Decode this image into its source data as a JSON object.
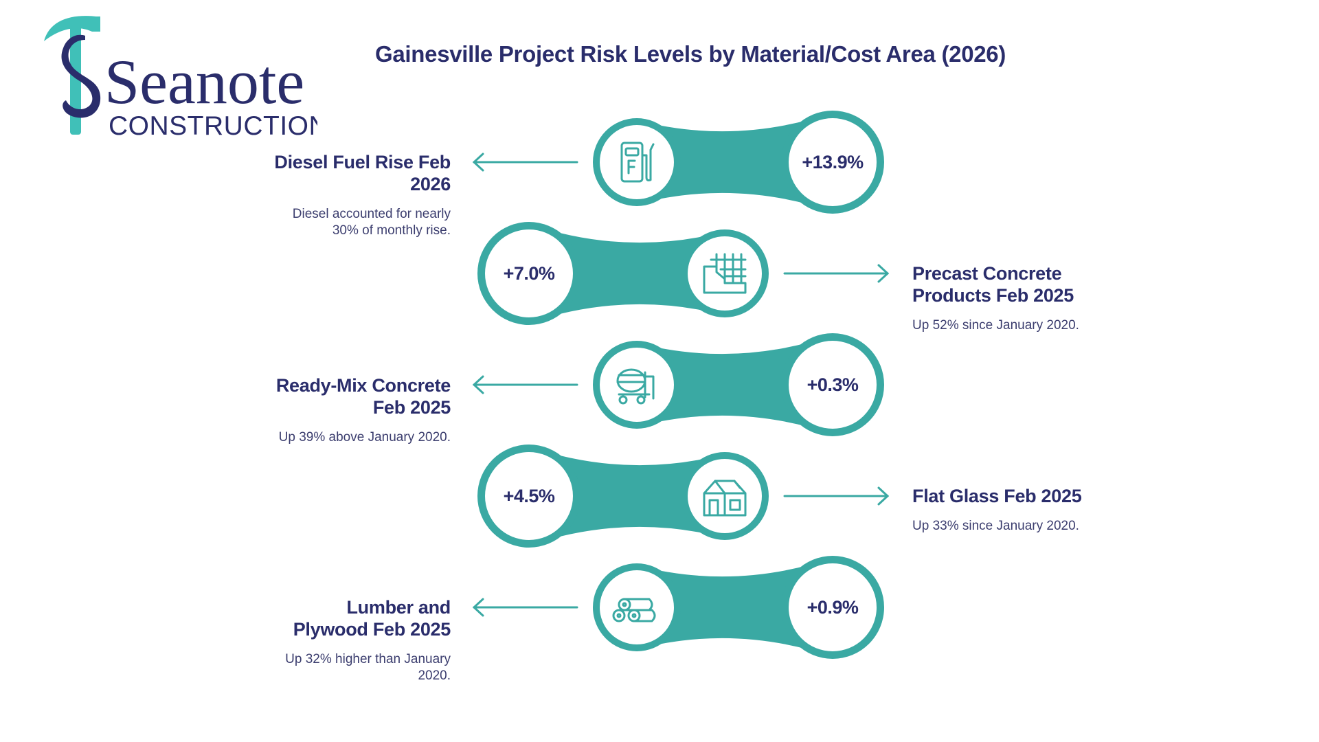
{
  "title": "Gainesville Project Risk Levels by Material/Cost Area (2026)",
  "logo": {
    "wordmark": "Seanote",
    "subtitle": "CONSTRUCTION"
  },
  "colors": {
    "teal": "#3aa9a3",
    "navy": "#2a2d6b",
    "hammer_teal": "#40c0b8"
  },
  "items": [
    {
      "label": "Diesel Fuel Rise Feb 2026",
      "value": "+13.9%",
      "note": "Diesel accounted for nearly 30% of monthly rise.",
      "icon": "fuel-pump-icon"
    },
    {
      "label": "Precast Concrete Products Feb 2025",
      "value": "+7.0%",
      "note": "Up 52% since January 2020.",
      "icon": "precast-panel-icon"
    },
    {
      "label": "Ready-Mix Concrete Feb 2025",
      "value": "+0.3%",
      "note": "Up 39% above January 2020.",
      "icon": "concrete-mixer-icon"
    },
    {
      "label": "Flat Glass Feb 2025",
      "value": "+4.5%",
      "note": "Up 33% since January 2020.",
      "icon": "glass-building-icon"
    },
    {
      "label": "Lumber and Plywood Feb 2025",
      "value": "+0.9%",
      "note": "Up 32% higher than January 2020.",
      "icon": "lumber-logs-icon"
    }
  ]
}
